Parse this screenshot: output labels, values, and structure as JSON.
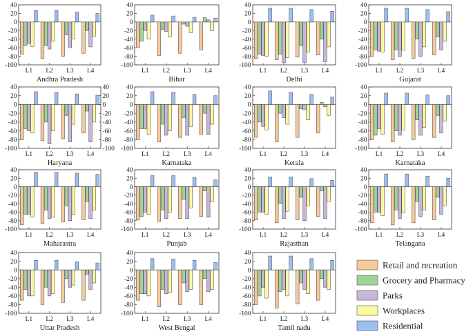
{
  "chart_data": {
    "type": "bar",
    "categories": [
      "L1",
      "L2",
      "L3",
      "L4"
    ],
    "series_names": [
      "Retail and recreation",
      "Grocery and Pharmacy",
      "Parks",
      "Workplaces",
      "Residential"
    ],
    "colors": [
      "#f6c99a",
      "#9fd39a",
      "#c9b6dc",
      "#fafa9c",
      "#9cbef0"
    ],
    "ylim": [
      -100,
      40
    ],
    "yticks": [
      -100,
      -80,
      -60,
      -40,
      -20,
      0,
      20,
      40
    ],
    "panels": [
      {
        "title": "Andhra Pradesh",
        "values": [
          [
            -75,
            -55,
            -50,
            -57,
            27
          ],
          [
            -85,
            -55,
            -63,
            -45,
            27
          ],
          [
            -80,
            -30,
            -60,
            -40,
            23
          ],
          [
            -73,
            -20,
            -58,
            -33,
            20
          ]
        ]
      },
      {
        "title": "Bihar",
        "values": [
          [
            -60,
            -45,
            -20,
            -40,
            16
          ],
          [
            -78,
            -18,
            -22,
            -35,
            14
          ],
          [
            -73,
            -5,
            -10,
            -25,
            11
          ],
          [
            -65,
            10,
            5,
            -20,
            9
          ]
        ]
      },
      {
        "title": "Delhi",
        "values": [
          [
            -85,
            -75,
            -78,
            -80,
            32
          ],
          [
            -88,
            -75,
            -95,
            -83,
            32
          ],
          [
            -82,
            -55,
            -95,
            -70,
            29
          ],
          [
            -77,
            -40,
            -93,
            -58,
            25
          ]
        ]
      },
      {
        "title": "Gujarat",
        "values": [
          [
            -80,
            -65,
            -68,
            -70,
            32
          ],
          [
            -88,
            -65,
            -80,
            -66,
            32
          ],
          [
            -85,
            -40,
            -80,
            -58,
            29
          ],
          [
            -77,
            -35,
            -65,
            -45,
            24
          ]
        ]
      },
      {
        "title": "Haryana",
        "values": [
          [
            -80,
            -55,
            -60,
            -65,
            29
          ],
          [
            -82,
            -40,
            -90,
            -60,
            28
          ],
          [
            -78,
            -25,
            -85,
            -45,
            24
          ],
          [
            -65,
            -15,
            -85,
            -40,
            21
          ]
        ]
      },
      {
        "title": "Karnataka",
        "values": [
          [
            -80,
            -55,
            -55,
            -68,
            29
          ],
          [
            -85,
            -45,
            -70,
            -60,
            28
          ],
          [
            -75,
            -30,
            -70,
            -50,
            23
          ],
          [
            -68,
            -20,
            -68,
            -45,
            20
          ]
        ]
      },
      {
        "title": "Kerala",
        "values": [
          [
            -75,
            -40,
            -50,
            -58,
            31
          ],
          [
            -85,
            -20,
            -30,
            -45,
            28
          ],
          [
            -75,
            -10,
            -12,
            -35,
            23
          ],
          [
            -65,
            5,
            -5,
            -25,
            17
          ]
        ]
      },
      {
        "title": "Karnataka",
        "values": [
          [
            -80,
            -70,
            -55,
            -68,
            26
          ],
          [
            -85,
            -60,
            -70,
            -58,
            26
          ],
          [
            -80,
            -35,
            -70,
            -52,
            22
          ],
          [
            -75,
            -25,
            -65,
            -38,
            20
          ]
        ]
      },
      {
        "title": "Maharastra",
        "values": [
          [
            -90,
            -65,
            -65,
            -72,
            34
          ],
          [
            -87,
            -55,
            -75,
            -72,
            34
          ],
          [
            -83,
            -45,
            -80,
            -65,
            32
          ],
          [
            -78,
            -35,
            -75,
            -55,
            29
          ]
        ]
      },
      {
        "title": "Punjab",
        "values": [
          [
            -78,
            -70,
            -60,
            -65,
            26
          ],
          [
            -82,
            -55,
            -75,
            -60,
            26
          ],
          [
            -75,
            -30,
            -75,
            -50,
            22
          ],
          [
            -70,
            -10,
            -72,
            -35,
            16
          ]
        ]
      },
      {
        "title": "Rajasthan",
        "values": [
          [
            -78,
            -60,
            -60,
            -65,
            23
          ],
          [
            -85,
            -40,
            -75,
            -58,
            23
          ],
          [
            -78,
            -25,
            -80,
            -45,
            19
          ],
          [
            -70,
            -10,
            -75,
            -35,
            15
          ]
        ]
      },
      {
        "title": "Telangana",
        "values": [
          [
            -85,
            -60,
            -60,
            -68,
            30
          ],
          [
            -90,
            -55,
            -75,
            -62,
            30
          ],
          [
            -85,
            -35,
            -70,
            -55,
            25
          ],
          [
            -78,
            -25,
            -65,
            -45,
            20
          ]
        ]
      },
      {
        "title": "Uttar Pradesh",
        "values": [
          [
            -70,
            -45,
            -60,
            -60,
            22
          ],
          [
            -80,
            -40,
            -60,
            -55,
            22
          ],
          [
            -75,
            -20,
            -40,
            -35,
            19
          ],
          [
            -70,
            -10,
            -45,
            -30,
            16
          ]
        ]
      },
      {
        "title": "West Bengal",
        "values": [
          [
            -70,
            -55,
            -55,
            -60,
            26
          ],
          [
            -85,
            -45,
            -55,
            -52,
            25
          ],
          [
            -80,
            -30,
            -50,
            -45,
            22
          ],
          [
            -80,
            -20,
            -50,
            -45,
            17
          ]
        ]
      },
      {
        "title": "Tamil nadu",
        "values": [
          [
            -80,
            -60,
            -40,
            -65,
            32
          ],
          [
            -88,
            -50,
            -45,
            -60,
            32
          ],
          [
            -78,
            -30,
            -45,
            -55,
            26
          ],
          [
            -70,
            -20,
            -40,
            -45,
            22
          ]
        ]
      }
    ]
  }
}
